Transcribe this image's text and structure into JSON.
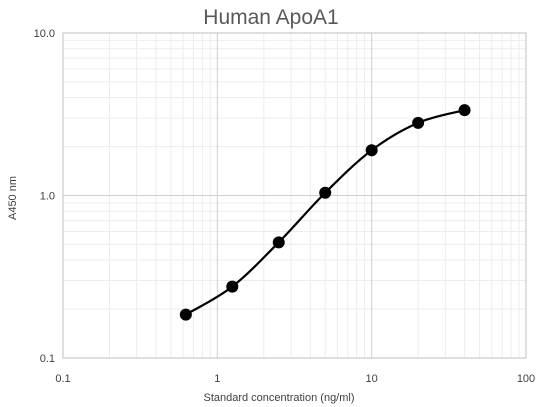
{
  "chart_data": {
    "type": "scatter",
    "title": "Human ApoA1",
    "xlabel": "Standard concentration (ng/ml)",
    "ylabel": "A450 nm",
    "x_scale": "log",
    "y_scale": "log",
    "xlim": [
      0.1,
      100
    ],
    "ylim": [
      0.1,
      10
    ],
    "x_ticks": [
      0.1,
      1,
      10,
      100
    ],
    "x_tick_labels": [
      "0.1",
      "1",
      "10",
      "100"
    ],
    "y_ticks": [
      0.1,
      1,
      10
    ],
    "y_tick_labels": [
      "0.1",
      "1.0",
      "10.0"
    ],
    "grid": true,
    "minor_grid": true,
    "series": [
      {
        "x": [
          0.625,
          1.25,
          2.5,
          5,
          10,
          20,
          40
        ],
        "y": [
          0.185,
          0.275,
          0.515,
          1.04,
          1.9,
          2.8,
          3.35
        ],
        "markers": true,
        "smooth_line": true,
        "color": "#000000"
      }
    ]
  }
}
